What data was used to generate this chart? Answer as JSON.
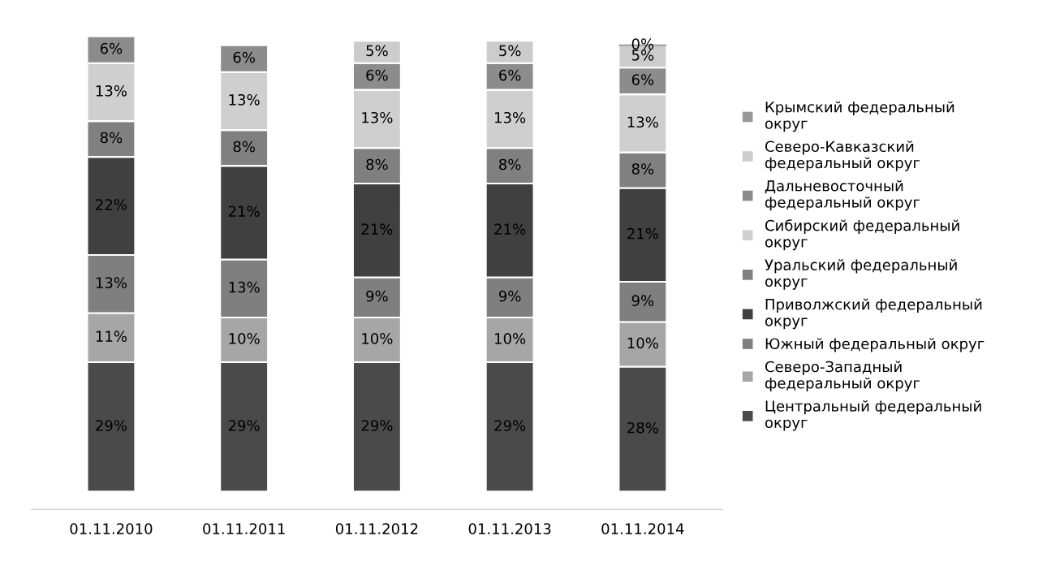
{
  "chart_data": {
    "type": "bar",
    "stacked": true,
    "grid": false,
    "legend": "right",
    "categories": [
      "01.11.2010",
      "01.11.2011",
      "01.11.2012",
      "01.11.2013",
      "01.11.2014"
    ],
    "series": [
      {
        "name": "Центральный федеральный округ",
        "color": "#4a4a4a",
        "values": [
          29,
          29,
          29,
          29,
          28
        ],
        "value_labels": [
          "29%",
          "29%",
          "29%",
          "29%",
          "28%"
        ]
      },
      {
        "name": "Северо-Западный федеральный округ",
        "color": "#a6a6a6",
        "values": [
          11,
          10,
          10,
          10,
          10
        ],
        "value_labels": [
          "11%",
          "10%",
          "10%",
          "10%",
          "10%"
        ]
      },
      {
        "name": "Южный федеральный округ",
        "color": "#7f7f7f",
        "values": [
          13,
          13,
          9,
          9,
          9
        ],
        "value_labels": [
          "13%",
          "13%",
          "9%",
          "9%",
          "9%"
        ]
      },
      {
        "name": "Приволжский федеральный округ",
        "color": "#404040",
        "values": [
          22,
          21,
          21,
          21,
          21
        ],
        "value_labels": [
          "22%",
          "21%",
          "21%",
          "21%",
          "21%"
        ]
      },
      {
        "name": "Уральский федеральный округ",
        "color": "#808080",
        "values": [
          8,
          8,
          8,
          8,
          8
        ],
        "value_labels": [
          "8%",
          "8%",
          "8%",
          "8%",
          "8%"
        ]
      },
      {
        "name": "Сибирский федеральный округ",
        "color": "#cfcfcf",
        "values": [
          13,
          13,
          13,
          13,
          13
        ],
        "value_labels": [
          "13%",
          "13%",
          "13%",
          "13%",
          "13%"
        ]
      },
      {
        "name": "Дальневосточный федеральный округ",
        "color": "#8c8c8c",
        "values": [
          6,
          6,
          6,
          6,
          6
        ],
        "value_labels": [
          "6%",
          "6%",
          "6%",
          "6%",
          "6%"
        ]
      },
      {
        "name": "Северо-Кавказский федеральный округ",
        "color": "#cccccc",
        "values": [
          null,
          null,
          5,
          5,
          5
        ],
        "value_labels": [
          null,
          null,
          "5%",
          "5%",
          "5%"
        ]
      },
      {
        "name": "Крымский федеральный округ",
        "color": "#999999",
        "values": [
          null,
          null,
          null,
          null,
          0
        ],
        "value_labels": [
          null,
          null,
          null,
          null,
          "0%"
        ]
      }
    ]
  }
}
